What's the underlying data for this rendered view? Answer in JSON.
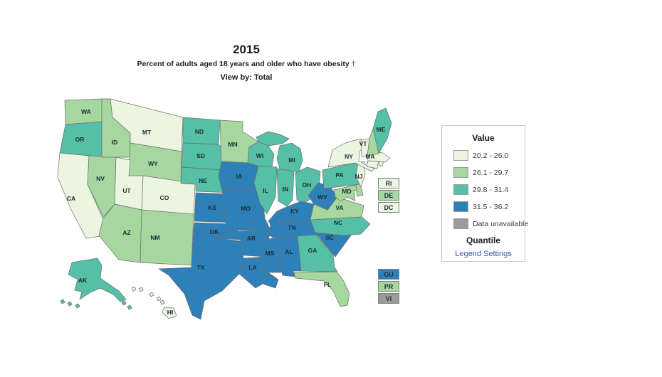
{
  "title": {
    "year": "2015",
    "subtitle": "Percent of adults aged 18 years and older who have obesity",
    "dagger": "†",
    "view_by": "View by: Total"
  },
  "legend": {
    "header": "Value",
    "footer": "Quantile",
    "settings_link": "Legend Settings"
  },
  "map": {
    "callouts_northeast": [
      "RI",
      "DE",
      "DC"
    ],
    "callouts_territories": [
      "GU",
      "PR",
      "VI"
    ]
  },
  "chart_data": {
    "type": "heatmap",
    "subtype": "us-state-choropleth",
    "title": "2015",
    "subtitle": "Percent of adults aged 18 years and older who have obesity †",
    "view_by": "Total",
    "classification": "Quantile",
    "legend_title": "Value",
    "legend_position": "right",
    "bins": [
      {
        "label": "20.2 - 26.0",
        "color": "#ebf5e0"
      },
      {
        "label": "26.1 - 29.7",
        "color": "#a6d79e"
      },
      {
        "label": "29.8 - 31.4",
        "color": "#55bfa7"
      },
      {
        "label": "31.5 - 36.2",
        "color": "#2e80b9"
      },
      {
        "label": "Data unavailable",
        "color": "#9b9b9b"
      }
    ],
    "states": [
      {
        "id": "WA",
        "bin": 1
      },
      {
        "id": "OR",
        "bin": 2
      },
      {
        "id": "CA",
        "bin": 0
      },
      {
        "id": "NV",
        "bin": 1
      },
      {
        "id": "ID",
        "bin": 1
      },
      {
        "id": "MT",
        "bin": 0
      },
      {
        "id": "WY",
        "bin": 1
      },
      {
        "id": "UT",
        "bin": 0
      },
      {
        "id": "CO",
        "bin": 0
      },
      {
        "id": "AZ",
        "bin": 1
      },
      {
        "id": "NM",
        "bin": 1
      },
      {
        "id": "ND",
        "bin": 2
      },
      {
        "id": "SD",
        "bin": 2
      },
      {
        "id": "NE",
        "bin": 2
      },
      {
        "id": "KS",
        "bin": 3
      },
      {
        "id": "OK",
        "bin": 3
      },
      {
        "id": "TX",
        "bin": 3
      },
      {
        "id": "MN",
        "bin": 1
      },
      {
        "id": "IA",
        "bin": 3
      },
      {
        "id": "MO",
        "bin": 3
      },
      {
        "id": "AR",
        "bin": 3
      },
      {
        "id": "LA",
        "bin": 3
      },
      {
        "id": "WI",
        "bin": 2
      },
      {
        "id": "IL",
        "bin": 2
      },
      {
        "id": "MI",
        "bin": 2
      },
      {
        "id": "IN",
        "bin": 2
      },
      {
        "id": "OH",
        "bin": 2
      },
      {
        "id": "KY",
        "bin": 3
      },
      {
        "id": "TN",
        "bin": 3
      },
      {
        "id": "MS",
        "bin": 3
      },
      {
        "id": "AL",
        "bin": 3
      },
      {
        "id": "GA",
        "bin": 2
      },
      {
        "id": "FL",
        "bin": 1
      },
      {
        "id": "SC",
        "bin": 3
      },
      {
        "id": "NC",
        "bin": 2
      },
      {
        "id": "VA",
        "bin": 1
      },
      {
        "id": "WV",
        "bin": 3
      },
      {
        "id": "MD",
        "bin": 1
      },
      {
        "id": "DE",
        "bin": 1
      },
      {
        "id": "PA",
        "bin": 2
      },
      {
        "id": "NJ",
        "bin": 0
      },
      {
        "id": "NY",
        "bin": 0
      },
      {
        "id": "CT",
        "bin": 0
      },
      {
        "id": "RI",
        "bin": 0
      },
      {
        "id": "MA",
        "bin": 0
      },
      {
        "id": "VT",
        "bin": 0
      },
      {
        "id": "NH",
        "bin": 1
      },
      {
        "id": "ME",
        "bin": 2
      },
      {
        "id": "AK",
        "bin": 2
      },
      {
        "id": "HI",
        "bin": 0
      },
      {
        "id": "DC",
        "bin": 0
      },
      {
        "id": "GU",
        "bin": 3
      },
      {
        "id": "PR",
        "bin": 1
      },
      {
        "id": "VI",
        "bin": 4
      }
    ]
  }
}
